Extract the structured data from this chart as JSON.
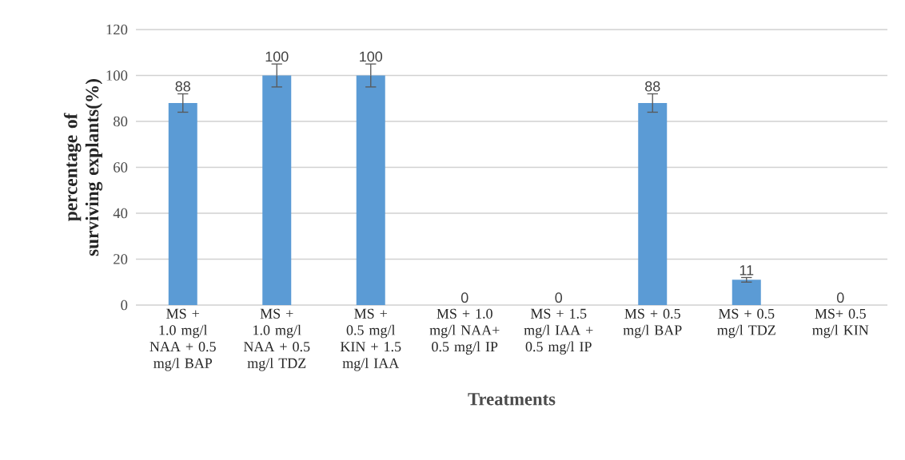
{
  "chart_data": {
    "type": "bar",
    "xlabel": "Treatments",
    "ylabel": "percentage of surviving explants(%)",
    "categories": [
      "MS + 1.0 mg/l NAA + 0.5 mg/l BAP",
      "MS + 1.0 mg/l NAA + 0.5 mg/l TDZ",
      "MS + 0.5 mg/l KIN + 1.5 mg/l IAA",
      "MS + 1.0 mg/l NAA+ 0.5 mg/l IP",
      "MS + 1.5 mg/l IAA + 0.5 mg/l IP",
      "MS + 0.5 mg/l BAP",
      "MS + 0.5 mg/l TDZ",
      "MS+ 0.5 mg/l KIN"
    ],
    "values": [
      88,
      100,
      100,
      0,
      0,
      88,
      11,
      0
    ],
    "errors": [
      4,
      5,
      5,
      null,
      null,
      4,
      1,
      null
    ],
    "color": "#5b9bd5",
    "ylim": [
      0,
      120
    ],
    "yticks": [
      0,
      20,
      40,
      60,
      80,
      100,
      120
    ],
    "grid": "y",
    "data_labels": true
  }
}
